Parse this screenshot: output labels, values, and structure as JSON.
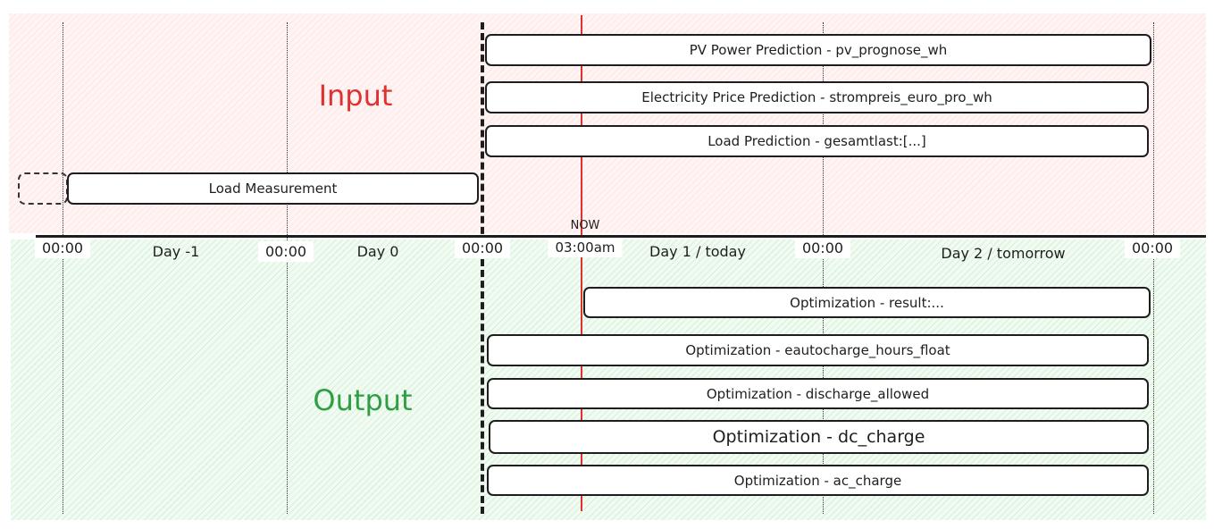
{
  "sections": {
    "input": "Input",
    "output": "Output"
  },
  "colors": {
    "input": "#e03131",
    "output": "#2f9e44",
    "now_line": "#e03131"
  },
  "timeline": {
    "now_label": "NOW",
    "now_time": "03:00am",
    "ticks": [
      "00:00",
      "00:00",
      "00:00",
      "00:00",
      "00:00"
    ],
    "days": [
      "Day -1",
      "Day 0",
      "Day 1 / today",
      "Day 2 / tomorrow"
    ]
  },
  "inputs": [
    "PV Power Prediction - pv_prognose_wh",
    "Electricity Price Prediction - strompreis_euro_pro_wh",
    "Load Prediction - gesamtlast:[...]",
    "Load Measurement"
  ],
  "outputs": [
    "Optimization - result:...",
    "Optimization - eautocharge_hours_float",
    "Optimization - discharge_allowed",
    "Optimization - dc_charge",
    "Optimization - ac_charge"
  ]
}
